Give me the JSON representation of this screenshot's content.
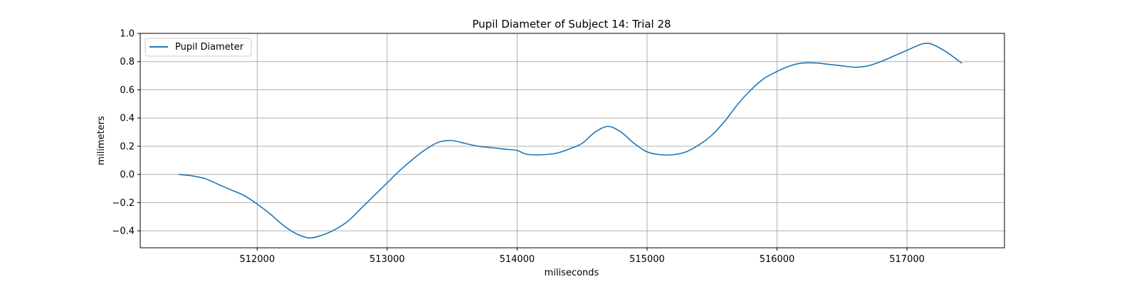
{
  "chart_data": {
    "type": "line",
    "title": "Pupil Diameter of Subject 14: Trial 28",
    "xlabel": "miliseconds",
    "ylabel": "milimeters",
    "xlim": [
      511100,
      517750
    ],
    "ylim": [
      -0.52,
      1.0
    ],
    "xticks": [
      512000,
      513000,
      514000,
      515000,
      516000,
      517000
    ],
    "yticks": [
      -0.4,
      -0.2,
      0.0,
      0.2,
      0.4,
      0.6,
      0.8,
      1.0
    ],
    "ytick_labels": [
      "−0.4",
      "−0.2",
      "0.0",
      "0.2",
      "0.4",
      "0.6",
      "0.8",
      "1.0"
    ],
    "grid": true,
    "legend_position": "upper-left",
    "colors": {
      "series": "#1f77b4",
      "grid": "#b0b0b0"
    },
    "series": [
      {
        "name": "Pupil Diameter",
        "x": [
          511400,
          511500,
          511600,
          511700,
          511800,
          511900,
          512000,
          512100,
          512200,
          512300,
          512400,
          512500,
          512600,
          512700,
          512800,
          512900,
          513000,
          513100,
          513200,
          513300,
          513400,
          513500,
          513600,
          513700,
          513800,
          513900,
          514000,
          514050,
          514100,
          514200,
          514300,
          514400,
          514500,
          514600,
          514700,
          514800,
          514900,
          515000,
          515100,
          515200,
          515300,
          515400,
          515500,
          515600,
          515700,
          515800,
          515900,
          516000,
          516100,
          516200,
          516300,
          516400,
          516500,
          516600,
          516700,
          516800,
          516900,
          517000,
          517100,
          517150,
          517200,
          517300,
          517420
        ],
        "y": [
          0.0,
          -0.01,
          -0.03,
          -0.07,
          -0.11,
          -0.15,
          -0.21,
          -0.28,
          -0.36,
          -0.42,
          -0.45,
          -0.43,
          -0.39,
          -0.33,
          -0.24,
          -0.15,
          -0.06,
          0.03,
          0.11,
          0.18,
          0.23,
          0.24,
          0.22,
          0.2,
          0.19,
          0.18,
          0.17,
          0.15,
          0.14,
          0.14,
          0.15,
          0.18,
          0.22,
          0.3,
          0.34,
          0.3,
          0.22,
          0.16,
          0.14,
          0.14,
          0.16,
          0.21,
          0.28,
          0.38,
          0.5,
          0.6,
          0.68,
          0.73,
          0.77,
          0.79,
          0.79,
          0.78,
          0.77,
          0.76,
          0.77,
          0.8,
          0.84,
          0.88,
          0.92,
          0.93,
          0.92,
          0.87,
          0.79
        ]
      }
    ]
  }
}
